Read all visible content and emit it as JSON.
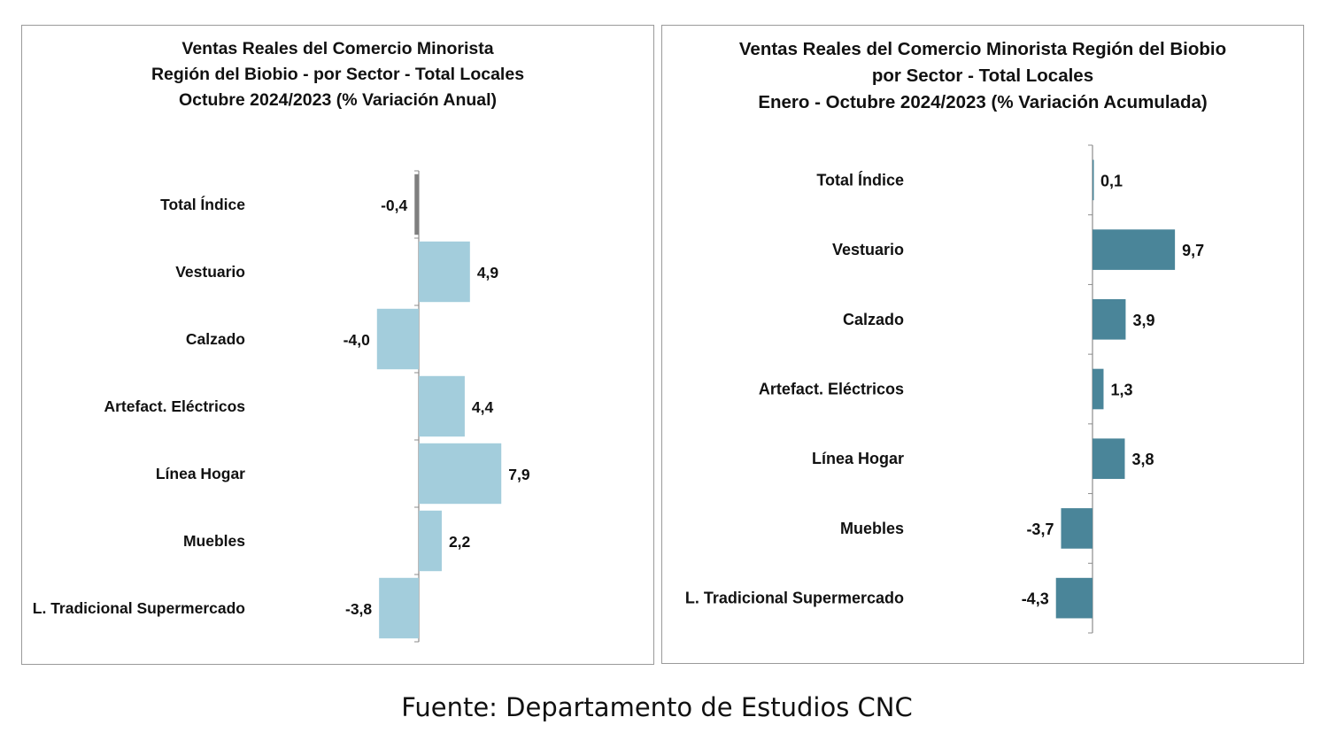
{
  "source": "Fuente: Departamento de Estudios CNC",
  "chart_data": [
    {
      "type": "bar",
      "orientation": "horizontal",
      "title_lines": [
        "Ventas Reales del Comercio Minorista",
        "Región del Biobio - por Sector - Total Locales",
        "Octubre 2024/2023 (% Variación Anual)"
      ],
      "categories": [
        "Total Índice",
        "Vestuario",
        "Calzado",
        "Artefact. Eléctricos",
        "Línea Hogar",
        "Muebles",
        "L. Tradicional Supermercado"
      ],
      "values": [
        -0.4,
        4.9,
        -4.0,
        4.4,
        7.9,
        2.2,
        -3.8
      ],
      "labels": [
        "-0,4",
        "4,9",
        "-4,0",
        "4,4",
        "7,9",
        "2,2",
        "-3,8"
      ],
      "colors": [
        "#7f7f7f",
        "#a3cddc",
        "#a3cddc",
        "#a3cddc",
        "#a3cddc",
        "#a3cddc",
        "#a3cddc"
      ],
      "grid": false,
      "legend": "none"
    },
    {
      "type": "bar",
      "orientation": "horizontal",
      "title_lines": [
        "Ventas Reales del Comercio Minorista Región del Biobio",
        "por Sector - Total Locales",
        "Enero - Octubre 2024/2023  (% Variación Acumulada)"
      ],
      "categories": [
        "Total Índice",
        "Vestuario",
        "Calzado",
        "Artefact. Eléctricos",
        "Línea Hogar",
        "Muebles",
        "L. Tradicional Supermercado"
      ],
      "values": [
        0.1,
        9.7,
        3.9,
        1.3,
        3.8,
        -3.7,
        -4.3
      ],
      "labels": [
        "0,1",
        "9,7",
        "3,9",
        "1,3",
        "3,8",
        "-3,7",
        "-4,3"
      ],
      "colors": [
        "#4a8599",
        "#4a8599",
        "#4a8599",
        "#4a8599",
        "#4a8599",
        "#4a8599",
        "#4a8599"
      ],
      "grid": false,
      "legend": "none"
    }
  ]
}
